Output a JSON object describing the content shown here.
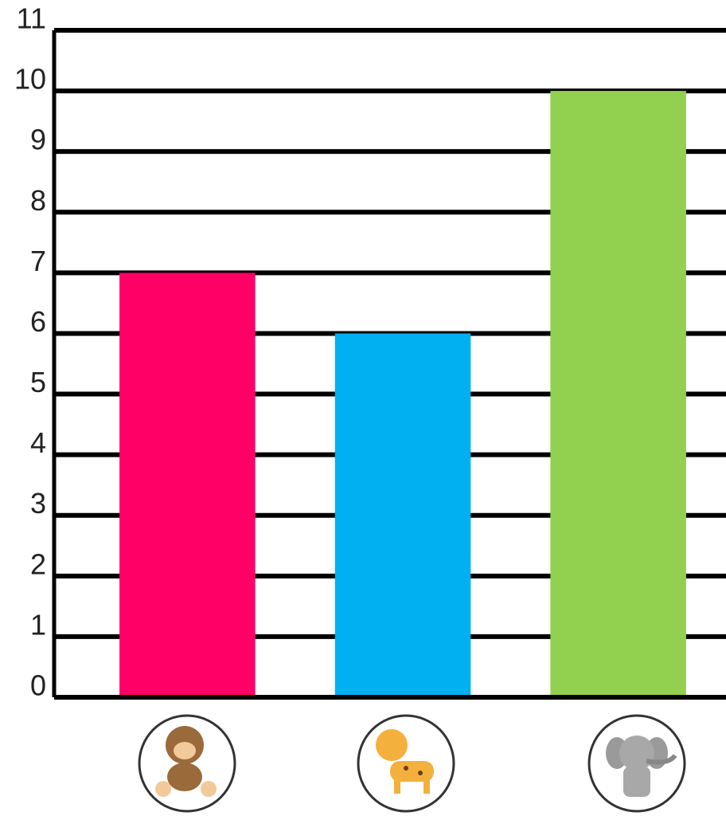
{
  "chart_data": {
    "type": "bar",
    "categories": [
      null,
      null,
      null
    ],
    "values": [
      7,
      6,
      10
    ],
    "colors": [
      "#ff0066",
      "#00b0f0",
      "#92d050"
    ],
    "ylim": [
      0,
      11
    ],
    "yticks": [
      0,
      1,
      2,
      3,
      4,
      5,
      6,
      7,
      8,
      9,
      10,
      11
    ],
    "grid": true
  }
}
